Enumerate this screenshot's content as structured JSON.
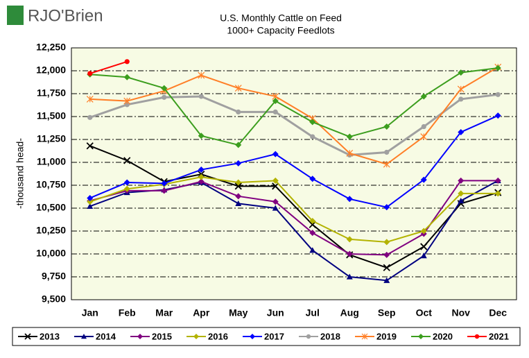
{
  "logo": "RJO'Brien",
  "chart_data": {
    "type": "line",
    "title": "U.S. Monthly Cattle on Feed",
    "subtitle": "1000+ Capacity Feedlots",
    "y_label": "-thousand head-",
    "categories": [
      "Jan",
      "Feb",
      "Mar",
      "Apr",
      "May",
      "Jun",
      "Jul",
      "Aug",
      "Sep",
      "Oct",
      "Nov",
      "Dec"
    ],
    "ylim": [
      9500,
      12250
    ],
    "yticks": [
      {
        "value": 9500,
        "label": "9,500"
      },
      {
        "value": 9750,
        "label": "9,750"
      },
      {
        "value": 10000,
        "label": "10,000"
      },
      {
        "value": 10250,
        "label": "10,250"
      },
      {
        "value": 10500,
        "label": "10,500"
      },
      {
        "value": 10750,
        "label": "10,750"
      },
      {
        "value": 11000,
        "label": "11,000"
      },
      {
        "value": 11250,
        "label": "11,250"
      },
      {
        "value": 11500,
        "label": "11,500"
      },
      {
        "value": 11750,
        "label": "11,750"
      },
      {
        "value": 12000,
        "label": "12,000"
      },
      {
        "value": 12250,
        "label": "12,250"
      }
    ],
    "grid": true,
    "legend": "bottom",
    "series": [
      {
        "name": "2013",
        "color": "#000000",
        "marker": "x",
        "values": [
          11180,
          11020,
          10790,
          10870,
          10740,
          10740,
          10320,
          9990,
          9850,
          10080,
          10550,
          10670
        ]
      },
      {
        "name": "2014",
        "color": "#000080",
        "marker": "triangle",
        "values": [
          10520,
          10670,
          10700,
          10780,
          10550,
          10500,
          10040,
          9750,
          9710,
          9980,
          10580,
          10800
        ]
      },
      {
        "name": "2015",
        "color": "#800080",
        "marker": "diamond",
        "values": [
          10580,
          10690,
          10690,
          10790,
          10630,
          10570,
          10230,
          10000,
          9990,
          10220,
          10800,
          10800
        ]
      },
      {
        "name": "2016",
        "color": "#b3b300",
        "marker": "diamond",
        "values": [
          10570,
          10710,
          10760,
          10840,
          10780,
          10800,
          10360,
          10160,
          10130,
          10250,
          10660,
          10660
        ]
      },
      {
        "name": "2017",
        "color": "#0000ff",
        "marker": "diamond",
        "values": [
          10610,
          10780,
          10770,
          10920,
          10990,
          11090,
          10820,
          10600,
          10510,
          10810,
          11330,
          11510
        ]
      },
      {
        "name": "2018",
        "color": "#a0a0a0",
        "marker": "circle",
        "values": [
          11490,
          11630,
          11710,
          11720,
          11550,
          11550,
          11280,
          11080,
          11110,
          11390,
          11690,
          11740
        ]
      },
      {
        "name": "2019",
        "color": "#ff7f27",
        "marker": "star",
        "values": [
          11690,
          11670,
          11780,
          11950,
          11810,
          11720,
          11480,
          11100,
          10980,
          11280,
          11800,
          12040
        ]
      },
      {
        "name": "2020",
        "color": "#3c9e1e",
        "marker": "diamond",
        "values": [
          11960,
          11930,
          11810,
          11290,
          11190,
          11670,
          11440,
          11280,
          11390,
          11720,
          11980,
          12030
        ]
      },
      {
        "name": "2021",
        "color": "#ff0000",
        "marker": "circle",
        "values": [
          11970,
          12100,
          null,
          null,
          null,
          null,
          null,
          null,
          null,
          null,
          null,
          null
        ]
      }
    ]
  }
}
